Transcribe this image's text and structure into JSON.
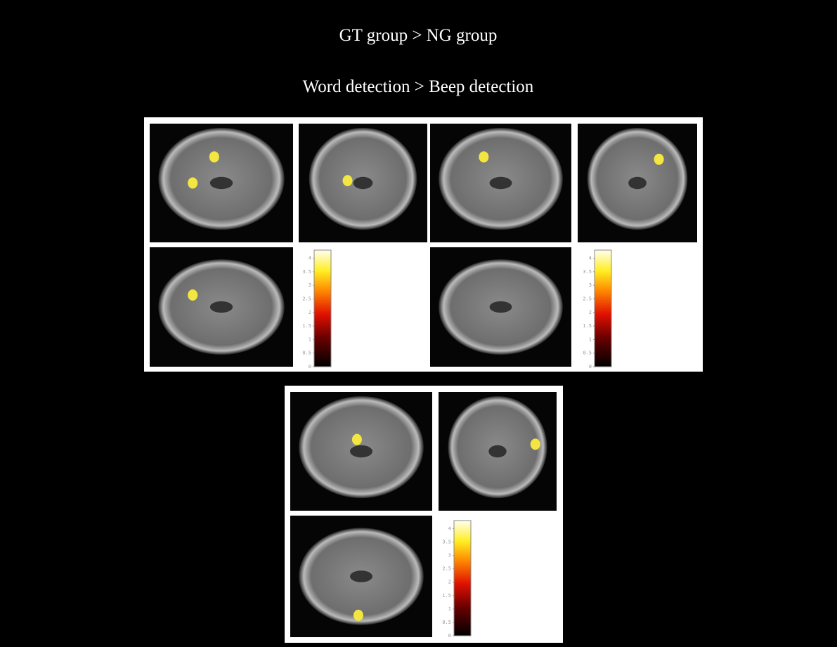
{
  "header": {
    "title": "GT group > NG group",
    "subtitle": "Word detection > Beep detection"
  },
  "panels": [
    {
      "colorbar": {
        "lim": [
          0,
          4.3
        ],
        "ticks": [
          0,
          0.5,
          1,
          1.5,
          2,
          2.5,
          3,
          3.5,
          4
        ]
      }
    },
    {
      "colorbar": {
        "lim": [
          0,
          4.3
        ],
        "ticks": [
          0,
          0.5,
          1,
          1.5,
          2,
          2.5,
          3,
          3.5,
          4
        ]
      }
    },
    {
      "colorbar": {
        "lim": [
          0,
          4.3
        ],
        "ticks": [
          0,
          0.5,
          1,
          1.5,
          2,
          2.5,
          3,
          3.5,
          4
        ]
      }
    }
  ]
}
